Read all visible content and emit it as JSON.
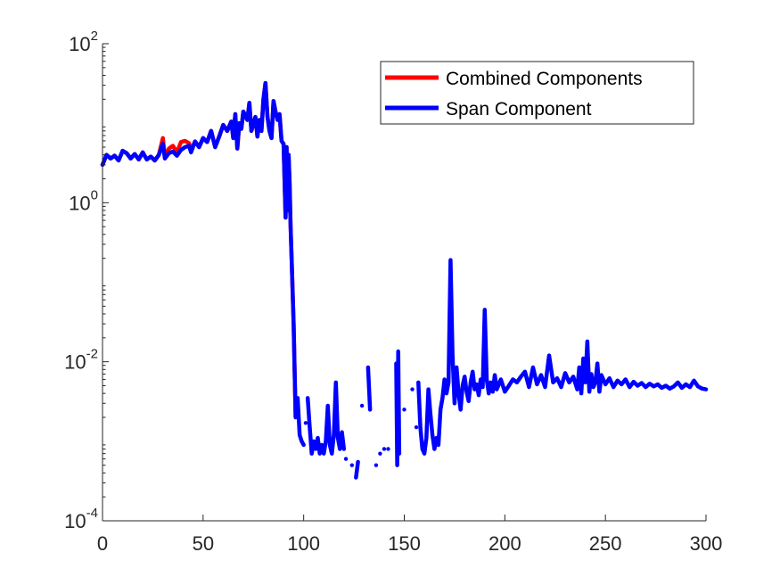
{
  "chart_data": {
    "type": "line",
    "title": "",
    "xlabel": "",
    "ylabel": "",
    "xlim": [
      0,
      300
    ],
    "ylim": [
      0.0001,
      100
    ],
    "yscale": "log",
    "grid": false,
    "legend_position": "top-right",
    "xticks": [
      {
        "value": 0,
        "label": "0"
      },
      {
        "value": 50,
        "label": "50"
      },
      {
        "value": 100,
        "label": "100"
      },
      {
        "value": 150,
        "label": "150"
      },
      {
        "value": 200,
        "label": "200"
      },
      {
        "value": 250,
        "label": "250"
      },
      {
        "value": 300,
        "label": "300"
      }
    ],
    "yticks": [
      {
        "value": 0.0001,
        "base": "10",
        "exp": "-4"
      },
      {
        "value": 0.01,
        "base": "10",
        "exp": "-2"
      },
      {
        "value": 1,
        "base": "10",
        "exp": "0"
      },
      {
        "value": 100,
        "base": "10",
        "exp": "2"
      }
    ],
    "series": [
      {
        "name": "Combined Components",
        "color": "#ff0000",
        "points": [
          [
            0,
            3.0
          ],
          [
            2,
            4.0
          ],
          [
            4,
            3.6
          ],
          [
            6,
            3.9
          ],
          [
            8,
            3.4
          ],
          [
            10,
            4.5
          ],
          [
            12,
            4.2
          ],
          [
            14,
            3.6
          ],
          [
            16,
            4.1
          ],
          [
            18,
            3.5
          ],
          [
            20,
            4.3
          ],
          [
            22,
            3.5
          ],
          [
            24,
            3.8
          ],
          [
            26,
            3.4
          ],
          [
            28,
            4.0
          ],
          [
            30,
            6.5
          ],
          [
            31,
            3.8
          ],
          [
            33,
            4.8
          ],
          [
            35,
            5.2
          ],
          [
            37,
            4.3
          ],
          [
            39,
            5.8
          ],
          [
            41,
            6.0
          ],
          [
            43,
            5.6
          ],
          [
            44,
            4.6
          ],
          [
            46,
            5.9
          ],
          [
            48,
            5.0
          ],
          [
            50,
            6.5
          ],
          [
            52,
            5.8
          ],
          [
            54,
            8.0
          ],
          [
            56,
            5.0
          ],
          [
            58,
            6.8
          ],
          [
            60,
            9.5
          ],
          [
            62,
            8.0
          ],
          [
            64,
            10.5
          ],
          [
            65,
            6.5
          ],
          [
            66,
            13.0
          ],
          [
            67,
            4.8
          ],
          [
            68,
            10.0
          ],
          [
            69,
            8.5
          ],
          [
            70,
            14.0
          ],
          [
            72,
            11.0
          ],
          [
            73,
            18.0
          ],
          [
            74,
            8.0
          ],
          [
            76,
            12.0
          ],
          [
            77,
            6.8
          ],
          [
            78,
            11.0
          ],
          [
            79,
            8.0
          ],
          [
            80,
            20.0
          ],
          [
            81,
            32.0
          ],
          [
            82,
            12.0
          ],
          [
            83,
            8.0
          ],
          [
            84,
            6.5
          ],
          [
            85,
            19.0
          ],
          [
            86,
            14.0
          ],
          [
            87,
            11.0
          ],
          [
            88,
            13.0
          ],
          [
            89,
            6.0
          ],
          [
            90,
            5.5
          ],
          [
            91,
            0.65
          ],
          [
            91.5,
            5.0
          ],
          [
            92,
            0.8
          ],
          [
            92.5,
            4.0
          ],
          [
            93,
            1.8
          ],
          [
            93.5,
            0.5
          ],
          [
            94,
            0.2
          ],
          [
            95,
            0.03
          ],
          [
            96,
            0.002
          ]
        ]
      },
      {
        "name": "Span Component",
        "color": "#0000ff",
        "points": [
          [
            0,
            3.0
          ],
          [
            2,
            4.0
          ],
          [
            4,
            3.6
          ],
          [
            6,
            3.9
          ],
          [
            8,
            3.4
          ],
          [
            10,
            4.5
          ],
          [
            12,
            4.2
          ],
          [
            14,
            3.6
          ],
          [
            16,
            4.1
          ],
          [
            18,
            3.5
          ],
          [
            20,
            4.3
          ],
          [
            22,
            3.5
          ],
          [
            24,
            3.8
          ],
          [
            26,
            3.4
          ],
          [
            28,
            4.0
          ],
          [
            30,
            5.5
          ],
          [
            31,
            3.6
          ],
          [
            33,
            4.2
          ],
          [
            35,
            4.4
          ],
          [
            37,
            3.9
          ],
          [
            39,
            4.6
          ],
          [
            41,
            5.0
          ],
          [
            43,
            5.2
          ],
          [
            44,
            4.3
          ],
          [
            46,
            5.9
          ],
          [
            48,
            5.0
          ],
          [
            50,
            6.5
          ],
          [
            52,
            5.8
          ],
          [
            54,
            8.0
          ],
          [
            56,
            5.0
          ],
          [
            58,
            6.8
          ],
          [
            60,
            9.5
          ],
          [
            62,
            8.0
          ],
          [
            64,
            10.5
          ],
          [
            65,
            6.5
          ],
          [
            66,
            13.0
          ],
          [
            67,
            4.8
          ],
          [
            68,
            10.0
          ],
          [
            69,
            8.5
          ],
          [
            70,
            14.0
          ],
          [
            72,
            11.0
          ],
          [
            73,
            18.0
          ],
          [
            74,
            8.0
          ],
          [
            76,
            12.0
          ],
          [
            77,
            6.8
          ],
          [
            78,
            11.0
          ],
          [
            79,
            8.0
          ],
          [
            80,
            20.0
          ],
          [
            81,
            32.0
          ],
          [
            82,
            12.0
          ],
          [
            83,
            8.0
          ],
          [
            84,
            6.5
          ],
          [
            85,
            19.0
          ],
          [
            86,
            14.0
          ],
          [
            87,
            11.0
          ],
          [
            88,
            13.0
          ],
          [
            89,
            6.0
          ],
          [
            90,
            5.5
          ],
          [
            91,
            0.65
          ],
          [
            91.5,
            5.0
          ],
          [
            92,
            0.8
          ],
          [
            92.5,
            4.0
          ],
          [
            93,
            1.8
          ],
          [
            93.5,
            0.5
          ],
          [
            94,
            0.2
          ],
          [
            95,
            0.03
          ],
          [
            96,
            0.002
          ],
          [
            97,
            0.0035
          ],
          [
            98,
            0.0012
          ],
          [
            99,
            0.001
          ],
          [
            100,
            0.0009
          ],
          null,
          [
            102,
            0.0035
          ],
          [
            103,
            0.0015
          ],
          [
            104,
            0.0007
          ],
          [
            105,
            0.001
          ],
          [
            106,
            0.0008
          ],
          [
            107,
            0.0011
          ],
          [
            108,
            0.0007
          ],
          [
            109,
            0.0009
          ],
          [
            110,
            0.0007
          ],
          [
            111,
            0.001
          ],
          [
            112,
            0.0028
          ],
          [
            113,
            0.0009
          ],
          [
            114,
            0.0007
          ],
          [
            115,
            0.0012
          ],
          [
            116,
            0.0055
          ],
          [
            117,
            0.0011
          ],
          [
            118,
            0.0008
          ],
          [
            119,
            0.0013
          ],
          [
            120,
            0.0008
          ],
          null,
          [
            126,
            0.00035
          ],
          [
            127,
            0.00055
          ],
          null,
          [
            132,
            0.0085
          ],
          [
            133,
            0.0025
          ],
          null,
          [
            146,
            0.0095
          ],
          [
            146.5,
            0.0005
          ],
          [
            147,
            0.0135
          ],
          [
            147.5,
            0.0007
          ],
          null,
          [
            157,
            0.0055
          ],
          [
            158,
            0.0015
          ],
          [
            159,
            0.0008
          ],
          [
            160,
            0.0007
          ],
          [
            161,
            0.0011
          ],
          [
            162,
            0.0045
          ],
          [
            163,
            0.0022
          ],
          [
            164,
            0.0012
          ],
          [
            165,
            0.0008
          ],
          [
            166,
            0.0011
          ],
          [
            167,
            0.0009
          ],
          [
            168,
            0.0025
          ],
          [
            169,
            0.0035
          ],
          [
            170,
            0.006
          ],
          [
            171,
            0.004
          ],
          [
            172,
            0.0055
          ],
          [
            173,
            0.19
          ],
          [
            174,
            0.012
          ],
          [
            175,
            0.003
          ],
          [
            176,
            0.0085
          ],
          [
            177,
            0.004
          ],
          [
            178,
            0.0025
          ],
          [
            179,
            0.005
          ],
          [
            180,
            0.0065
          ],
          [
            181,
            0.0042
          ],
          [
            182,
            0.0032
          ],
          [
            183,
            0.0055
          ],
          [
            184,
            0.0075
          ],
          [
            185,
            0.0045
          ],
          [
            186,
            0.0052
          ],
          [
            187,
            0.0038
          ],
          [
            188,
            0.006
          ],
          [
            189,
            0.0048
          ],
          [
            190,
            0.045
          ],
          [
            191,
            0.006
          ],
          [
            192,
            0.004
          ],
          [
            193,
            0.0055
          ],
          [
            194,
            0.0042
          ],
          [
            195,
            0.0068
          ],
          [
            196,
            0.0045
          ],
          [
            197,
            0.0052
          ],
          [
            198,
            0.006
          ],
          [
            200,
            0.0042
          ],
          [
            202,
            0.005
          ],
          [
            204,
            0.006
          ],
          [
            206,
            0.0055
          ],
          [
            208,
            0.0065
          ],
          [
            210,
            0.0075
          ],
          [
            212,
            0.0048
          ],
          [
            214,
            0.0085
          ],
          [
            216,
            0.0052
          ],
          [
            218,
            0.0068
          ],
          [
            220,
            0.0048
          ],
          [
            222,
            0.012
          ],
          [
            224,
            0.0055
          ],
          [
            226,
            0.0062
          ],
          [
            228,
            0.0048
          ],
          [
            230,
            0.0072
          ],
          [
            232,
            0.0055
          ],
          [
            234,
            0.0065
          ],
          [
            236,
            0.0045
          ],
          [
            237,
            0.0085
          ],
          [
            238,
            0.004
          ],
          [
            239,
            0.011
          ],
          [
            240,
            0.0055
          ],
          [
            241,
            0.018
          ],
          [
            242,
            0.0042
          ],
          [
            243,
            0.007
          ],
          [
            244,
            0.0048
          ],
          [
            245,
            0.0055
          ],
          [
            246,
            0.0095
          ],
          [
            247,
            0.0042
          ],
          [
            248,
            0.0068
          ],
          [
            250,
            0.0052
          ],
          [
            252,
            0.0062
          ],
          [
            254,
            0.0048
          ],
          [
            256,
            0.0058
          ],
          [
            258,
            0.0052
          ],
          [
            260,
            0.006
          ],
          [
            262,
            0.0048
          ],
          [
            264,
            0.0056
          ],
          [
            266,
            0.005
          ],
          [
            268,
            0.0054
          ],
          [
            270,
            0.0048
          ],
          [
            272,
            0.0053
          ],
          [
            274,
            0.0049
          ],
          [
            276,
            0.0052
          ],
          [
            278,
            0.0047
          ],
          [
            280,
            0.005
          ],
          [
            282,
            0.0046
          ],
          [
            284,
            0.0049
          ],
          [
            286,
            0.0055
          ],
          [
            288,
            0.0047
          ],
          [
            290,
            0.0052
          ],
          [
            292,
            0.0048
          ],
          [
            294,
            0.0058
          ],
          [
            296,
            0.0049
          ],
          [
            298,
            0.0046
          ],
          [
            300,
            0.0045
          ]
        ],
        "isolated_points": [
          [
            101,
            0.0017
          ],
          [
            121,
            0.0006
          ],
          [
            124,
            0.0005
          ],
          [
            129,
            0.0028
          ],
          [
            136,
            0.0005
          ],
          [
            138,
            0.0007
          ],
          [
            140,
            0.0008
          ],
          [
            142,
            0.0008
          ],
          [
            150,
            0.0025
          ],
          [
            154,
            0.0045
          ],
          [
            156,
            0.0015
          ]
        ]
      }
    ]
  }
}
